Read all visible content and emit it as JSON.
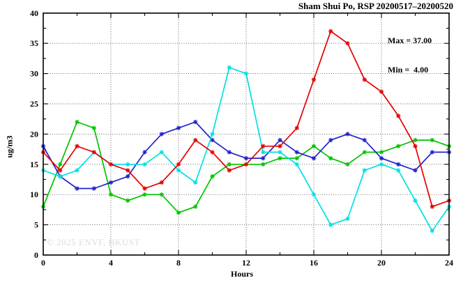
{
  "title": "Sham Shui Po, RSP 20200517–20200520",
  "legend": {
    "max_label": "Max = 37.00",
    "min_label": "Min =  4.00"
  },
  "watermark": "© 2025 ENVF, HKUST",
  "colors": {
    "series_red": "#e60000",
    "series_green": "#00c400",
    "series_blue": "#2222cc",
    "series_cyan": "#00e0e4",
    "grid": "#555555",
    "axis": "#000000",
    "watermark": "#d9dcde",
    "background": "#ffffff"
  },
  "chart_data": {
    "type": "line",
    "title": "Sham Shui Po, RSP 20200517–20200520",
    "xlabel": "Hours",
    "ylabel": "ug/m3",
    "xlim": [
      0,
      24
    ],
    "ylim": [
      0,
      40
    ],
    "x_major_ticks": [
      0,
      4,
      8,
      12,
      16,
      20,
      24
    ],
    "x_minor_ticks": [
      2,
      6,
      10,
      14,
      18,
      22
    ],
    "y_major_ticks": [
      0,
      5,
      10,
      15,
      20,
      25,
      30,
      35,
      40
    ],
    "y_minor_ticks": [
      2.5,
      7.5,
      12.5,
      17.5,
      22.5,
      27.5,
      32.5,
      37.5
    ],
    "grid_x_lines": [
      4,
      8,
      12,
      16,
      20
    ],
    "grid_y_lines": [
      5,
      10,
      15,
      20,
      25,
      30,
      35
    ],
    "grid_style": "dotted",
    "legend_position": "top-right-inside",
    "annotations": {
      "max": 37.0,
      "min": 4.0
    },
    "x": [
      0,
      1,
      2,
      3,
      4,
      5,
      6,
      7,
      8,
      9,
      10,
      11,
      12,
      13,
      14,
      15,
      16,
      17,
      18,
      19,
      20,
      21,
      22,
      23,
      24
    ],
    "series": [
      {
        "name": "day-20200518-green",
        "color": "#00c400",
        "values": [
          8,
          15,
          22,
          21,
          10,
          9,
          10,
          10,
          7,
          8,
          13,
          15,
          15,
          15,
          16,
          16,
          18,
          16,
          15,
          17,
          17,
          18,
          19,
          19,
          18
        ]
      },
      {
        "name": "day-20200519-blue",
        "color": "#2222cc",
        "values": [
          18,
          13,
          11,
          11,
          12,
          13,
          17,
          20,
          21,
          22,
          19,
          17,
          16,
          16,
          19,
          17,
          16,
          19,
          20,
          19,
          16,
          15,
          14,
          17,
          17
        ]
      },
      {
        "name": "day-20200520-cyan",
        "color": "#00e0e4",
        "values": [
          14,
          13,
          14,
          17,
          15,
          15,
          15,
          17,
          14,
          12,
          20,
          31,
          30,
          17,
          17,
          15,
          10,
          5,
          6,
          14,
          15,
          14,
          9,
          4,
          8
        ]
      },
      {
        "name": "day-20200517-red",
        "color": "#e60000",
        "values": [
          17,
          14,
          18,
          17,
          15,
          14,
          11,
          12,
          15,
          19,
          17,
          14,
          15,
          18,
          18,
          21,
          29,
          37,
          35,
          29,
          27,
          23,
          18,
          8,
          9
        ]
      }
    ]
  }
}
